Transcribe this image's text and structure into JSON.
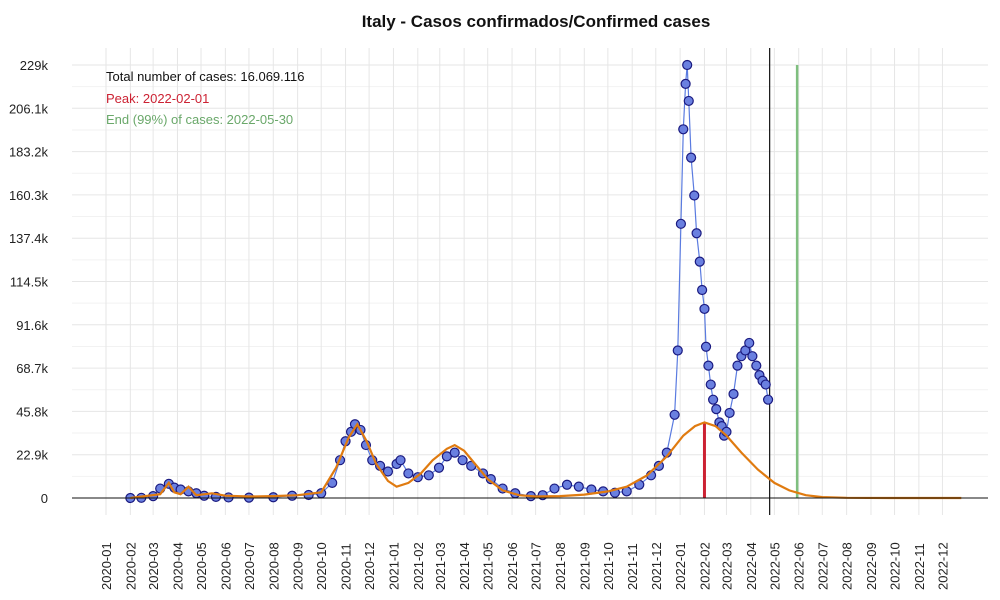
{
  "chart_data": {
    "type": "scatter",
    "title": "Italy - Casos confirmados/Confirmed cases",
    "xlabel": "",
    "ylabel": "",
    "grid": true,
    "ylim": [
      0,
      229000
    ],
    "xlim": [
      "2020-01-01",
      "2022-12-31"
    ],
    "y_ticks": [
      {
        "value": 0,
        "label": "0"
      },
      {
        "value": 22900,
        "label": "22.9k"
      },
      {
        "value": 45800,
        "label": "45.8k"
      },
      {
        "value": 68700,
        "label": "68.7k"
      },
      {
        "value": 91600,
        "label": "91.6k"
      },
      {
        "value": 114500,
        "label": "114.5k"
      },
      {
        "value": 137400,
        "label": "137.4k"
      },
      {
        "value": 160300,
        "label": "160.3k"
      },
      {
        "value": 183200,
        "label": "183.2k"
      },
      {
        "value": 206100,
        "label": "206.1k"
      },
      {
        "value": 229000,
        "label": "229k"
      }
    ],
    "x_ticks": [
      "2020-01",
      "2020-02",
      "2020-03",
      "2020-04",
      "2020-05",
      "2020-06",
      "2020-07",
      "2020-08",
      "2020-09",
      "2020-10",
      "2020-11",
      "2020-12",
      "2021-01",
      "2021-02",
      "2021-03",
      "2021-04",
      "2021-05",
      "2021-06",
      "2021-07",
      "2021-08",
      "2021-09",
      "2021-10",
      "2021-11",
      "2021-12",
      "2022-01",
      "2022-02",
      "2022-03",
      "2022-04",
      "2022-05",
      "2022-06",
      "2022-07",
      "2022-08",
      "2022-09",
      "2022-10",
      "2022-11",
      "2022-12"
    ],
    "annotations": {
      "total": "Total number of cases: 16.069.116",
      "peak": "Peak: 2022-02-01",
      "end": "End (99%) of cases: 2022-05-30"
    },
    "colors": {
      "points_fill": "#6a80e0",
      "points_stroke": "#1a1a80",
      "line": "#5a7be0",
      "fit": "#e07b10",
      "peak": "#cc2233",
      "end": "#7fbf7f",
      "today": "#111111"
    },
    "today_line": "2022-04-25",
    "peak_line": "2022-02-01",
    "end_line": "2022-05-30",
    "series": [
      {
        "points": [
          [
            "2020-02-01",
            0
          ],
          [
            "2020-02-15",
            100
          ],
          [
            "2020-03-01",
            1000
          ],
          [
            "2020-03-10",
            5000
          ],
          [
            "2020-03-21",
            7500
          ],
          [
            "2020-03-28",
            5500
          ],
          [
            "2020-04-05",
            4500
          ],
          [
            "2020-04-15",
            3500
          ],
          [
            "2020-04-25",
            2500
          ],
          [
            "2020-05-05",
            1200
          ],
          [
            "2020-05-20",
            600
          ],
          [
            "2020-06-05",
            300
          ],
          [
            "2020-07-01",
            200
          ],
          [
            "2020-08-01",
            400
          ],
          [
            "2020-08-25",
            1200
          ],
          [
            "2020-09-15",
            1600
          ],
          [
            "2020-10-01",
            2500
          ],
          [
            "2020-10-15",
            8000
          ],
          [
            "2020-10-25",
            20000
          ],
          [
            "2020-11-01",
            30000
          ],
          [
            "2020-11-08",
            35000
          ],
          [
            "2020-11-13",
            39000
          ],
          [
            "2020-11-20",
            36000
          ],
          [
            "2020-11-27",
            28000
          ],
          [
            "2020-12-05",
            20000
          ],
          [
            "2020-12-15",
            17000
          ],
          [
            "2020-12-25",
            14000
          ],
          [
            "2021-01-05",
            18000
          ],
          [
            "2021-01-10",
            20000
          ],
          [
            "2021-01-20",
            13000
          ],
          [
            "2021-02-01",
            11000
          ],
          [
            "2021-02-15",
            12000
          ],
          [
            "2021-02-28",
            16000
          ],
          [
            "2021-03-10",
            22000
          ],
          [
            "2021-03-20",
            24000
          ],
          [
            "2021-03-30",
            20000
          ],
          [
            "2021-04-10",
            17000
          ],
          [
            "2021-04-25",
            13000
          ],
          [
            "2021-05-05",
            10000
          ],
          [
            "2021-05-20",
            5000
          ],
          [
            "2021-06-05",
            2500
          ],
          [
            "2021-06-25",
            1000
          ],
          [
            "2021-07-10",
            1500
          ],
          [
            "2021-07-25",
            5000
          ],
          [
            "2021-08-10",
            7000
          ],
          [
            "2021-08-25",
            6000
          ],
          [
            "2021-09-10",
            4500
          ],
          [
            "2021-09-25",
            3500
          ],
          [
            "2021-10-10",
            2800
          ],
          [
            "2021-10-25",
            3500
          ],
          [
            "2021-11-10",
            7000
          ],
          [
            "2021-11-25",
            12000
          ],
          [
            "2021-12-05",
            17000
          ],
          [
            "2021-12-15",
            24000
          ],
          [
            "2021-12-25",
            44000
          ],
          [
            "2021-12-29",
            78000
          ],
          [
            "2022-01-02",
            145000
          ],
          [
            "2022-01-05",
            195000
          ],
          [
            "2022-01-08",
            219000
          ],
          [
            "2022-01-10",
            229000
          ],
          [
            "2022-01-12",
            210000
          ],
          [
            "2022-01-15",
            180000
          ],
          [
            "2022-01-19",
            160000
          ],
          [
            "2022-01-22",
            140000
          ],
          [
            "2022-01-26",
            125000
          ],
          [
            "2022-01-29",
            110000
          ],
          [
            "2022-02-01",
            100000
          ],
          [
            "2022-02-03",
            80000
          ],
          [
            "2022-02-06",
            70000
          ],
          [
            "2022-02-09",
            60000
          ],
          [
            "2022-02-12",
            52000
          ],
          [
            "2022-02-16",
            47000
          ],
          [
            "2022-02-20",
            40000
          ],
          [
            "2022-02-23",
            38000
          ],
          [
            "2022-02-26",
            33000
          ],
          [
            "2022-03-01",
            35000
          ],
          [
            "2022-03-05",
            45000
          ],
          [
            "2022-03-10",
            55000
          ],
          [
            "2022-03-15",
            70000
          ],
          [
            "2022-03-20",
            75000
          ],
          [
            "2022-03-25",
            78000
          ],
          [
            "2022-03-30",
            82000
          ],
          [
            "2022-04-03",
            75000
          ],
          [
            "2022-04-08",
            70000
          ],
          [
            "2022-04-12",
            65000
          ],
          [
            "2022-04-16",
            62000
          ],
          [
            "2022-04-20",
            60000
          ],
          [
            "2022-04-23",
            52000
          ]
        ]
      }
    ],
    "fit_curve": [
      [
        "2020-02-01",
        0
      ],
      [
        "2020-03-10",
        2000
      ],
      [
        "2020-03-21",
        8000
      ],
      [
        "2020-03-28",
        3000
      ],
      [
        "2020-04-05",
        2000
      ],
      [
        "2020-04-15",
        6000
      ],
      [
        "2020-04-25",
        1500
      ],
      [
        "2020-05-15",
        2500
      ],
      [
        "2020-06-01",
        1200
      ],
      [
        "2020-07-01",
        800
      ],
      [
        "2020-08-01",
        1000
      ],
      [
        "2020-09-01",
        1500
      ],
      [
        "2020-10-01",
        3000
      ],
      [
        "2020-10-20",
        16000
      ],
      [
        "2020-11-05",
        32000
      ],
      [
        "2020-11-16",
        39000
      ],
      [
        "2020-11-28",
        30000
      ],
      [
        "2020-12-10",
        18000
      ],
      [
        "2020-12-25",
        9000
      ],
      [
        "2021-01-05",
        6000
      ],
      [
        "2021-01-20",
        8000
      ],
      [
        "2021-02-05",
        13000
      ],
      [
        "2021-02-20",
        20000
      ],
      [
        "2021-03-10",
        26000
      ],
      [
        "2021-03-20",
        28000
      ],
      [
        "2021-04-01",
        25000
      ],
      [
        "2021-04-15",
        18000
      ],
      [
        "2021-05-01",
        10000
      ],
      [
        "2021-05-20",
        4000
      ],
      [
        "2021-06-10",
        1500
      ],
      [
        "2021-07-01",
        800
      ],
      [
        "2021-08-01",
        1000
      ],
      [
        "2021-09-01",
        1800
      ],
      [
        "2021-10-01",
        3500
      ],
      [
        "2021-10-25",
        6000
      ],
      [
        "2021-11-20",
        12000
      ],
      [
        "2021-12-15",
        22000
      ],
      [
        "2022-01-05",
        33000
      ],
      [
        "2022-01-20",
        38000
      ],
      [
        "2022-02-01",
        40000
      ],
      [
        "2022-02-15",
        38000
      ],
      [
        "2022-03-01",
        33000
      ],
      [
        "2022-03-20",
        24000
      ],
      [
        "2022-04-10",
        15000
      ],
      [
        "2022-05-01",
        8000
      ],
      [
        "2022-05-20",
        4000
      ],
      [
        "2022-06-10",
        1500
      ],
      [
        "2022-07-01",
        500
      ],
      [
        "2022-08-01",
        100
      ],
      [
        "2022-10-01",
        0
      ],
      [
        "2022-12-25",
        0
      ]
    ]
  }
}
